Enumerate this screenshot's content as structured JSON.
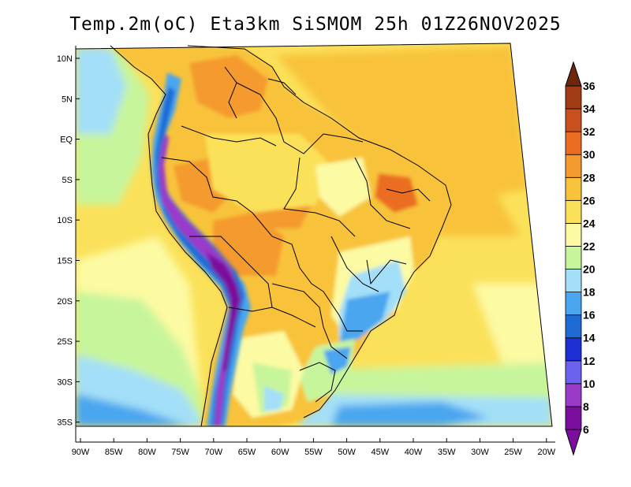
{
  "title": "Temp.2m(oC) Eta3km SiSMOM 25h 01Z26NOV2025",
  "colors": {
    "c6_8": "#7b0e9c",
    "c8_10": "#9a3ac9",
    "c10_12": "#6b62f0",
    "c12_14": "#1d2fd4",
    "c14_16": "#1f6bd6",
    "c16_18": "#4aa6ef",
    "c18_20": "#a3dff8",
    "c20_22": "#c7f59b",
    "c22_24": "#fcfaa2",
    "c24_26": "#fbe15a",
    "c26_28": "#f8c33b",
    "c28_30": "#f59a2e",
    "c30_32": "#ea6d21",
    "c32_34": "#c7501c",
    "c34_36": "#a03b16",
    "c36up": "#6d250d",
    "border": "#000000"
  },
  "map": {
    "lat_labels": [
      "10N",
      "5N",
      "EQ",
      "5S",
      "10S",
      "15S",
      "20S",
      "25S",
      "30S",
      "35S"
    ],
    "lon_labels": [
      "90W",
      "85W",
      "80W",
      "75W",
      "70W",
      "65W",
      "60W",
      "55W",
      "50W",
      "45W",
      "40W",
      "35W",
      "30W",
      "25W",
      "20W"
    ]
  },
  "colorbar": {
    "labels": [
      "6",
      "8",
      "10",
      "12",
      "14",
      "16",
      "18",
      "20",
      "22",
      "24",
      "26",
      "28",
      "30",
      "32",
      "34",
      "36"
    ],
    "values": [
      6,
      8,
      10,
      12,
      14,
      16,
      18,
      20,
      22,
      24,
      26,
      28,
      30,
      32,
      34,
      36
    ]
  }
}
